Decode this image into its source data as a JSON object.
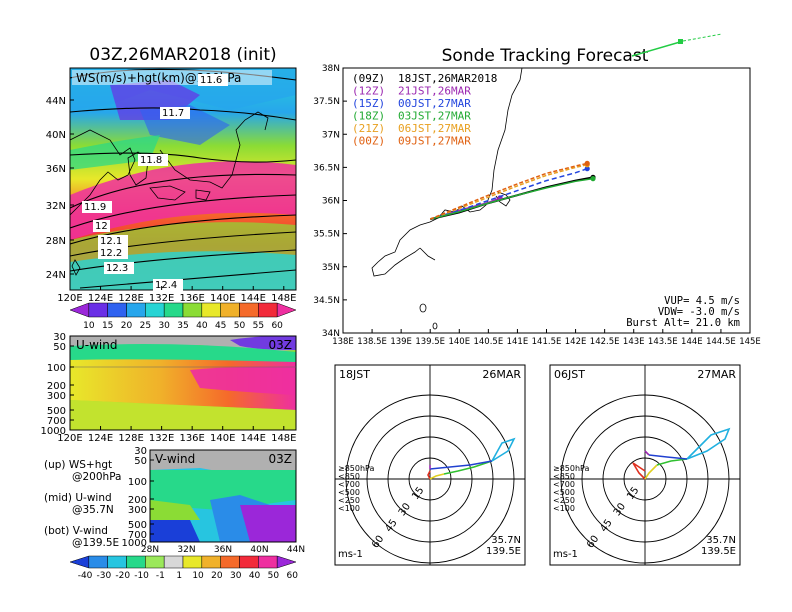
{
  "left": {
    "title": "03Z,26MAR2018 (init)",
    "map_label": "WS(m/s)+hgt(km)@200hPa",
    "lon_ticks": [
      "120E",
      "124E",
      "128E",
      "132E",
      "136E",
      "140E",
      "144E",
      "148E"
    ],
    "lat_ticks": [
      "44N",
      "40N",
      "36N",
      "32N",
      "28N",
      "24N"
    ],
    "hgt_labels": [
      "11.6",
      "11.7",
      "11.8",
      "11.9",
      "12",
      "12.1",
      "12.2",
      "12.3",
      "12.4"
    ],
    "ws_scale": [
      "10",
      "15",
      "20",
      "25",
      "30",
      "35",
      "40",
      "45",
      "50",
      "55",
      "60"
    ],
    "ws_colors": [
      "#9b27d9",
      "#6a2fe6",
      "#2f62f0",
      "#27a6ec",
      "#27d4d4",
      "#27d98a",
      "#8bdc35",
      "#e8e82a",
      "#f0b12a",
      "#f56a2a",
      "#f22a3a",
      "#ee2fa0"
    ],
    "u_panel": {
      "label": "U-wind",
      "time": "03Z",
      "p_ticks": [
        "30",
        "50",
        "100",
        "200",
        "300",
        "500",
        "700",
        "1000"
      ]
    },
    "v_panel": {
      "label": "V-wind",
      "time": "03Z",
      "p_ticks": [
        "30",
        "50",
        "100",
        "200",
        "300",
        "500",
        "700",
        "1000"
      ],
      "lat_ticks": [
        "28N",
        "32N",
        "36N",
        "40N",
        "44N"
      ]
    },
    "legend_lines": [
      {
        "a": "(up) WS+hgt",
        "b": "@200hPa"
      },
      {
        "a": "(mid) U-wind",
        "b": "@35.7N"
      },
      {
        "a": "(bot) V-wind",
        "b": "@139.5E"
      }
    ],
    "wind_scale": [
      "-40",
      "-30",
      "-20",
      "-10",
      "-1",
      "1",
      "10",
      "20",
      "30",
      "40",
      "50",
      "60"
    ],
    "wind_colors": [
      "#1a3fd8",
      "#2a8ce8",
      "#27c5e0",
      "#27d98a",
      "#9be85a",
      "#d8d8d8",
      "#e8e82a",
      "#f0b12a",
      "#f56a2a",
      "#f22a3a",
      "#ee2fa0",
      "#9b27d9"
    ]
  },
  "right": {
    "title": "Sonde Tracking Forecast",
    "entries": [
      {
        "utc": "(09Z)",
        "jst": "18JST,26MAR2018",
        "color": "#000000"
      },
      {
        "utc": "(12Z)",
        "jst": "21JST,26MAR",
        "color": "#9b27b0"
      },
      {
        "utc": "(15Z)",
        "jst": "00JST,27MAR",
        "color": "#2244dd"
      },
      {
        "utc": "(18Z)",
        "jst": "03JST,27MAR",
        "color": "#22aa33"
      },
      {
        "utc": "(21Z)",
        "jst": "06JST,27MAR",
        "color": "#e8a020"
      },
      {
        "utc": "(00Z)",
        "jst": "09JST,27MAR",
        "color": "#e06010"
      }
    ],
    "lat_ticks": [
      "38N",
      "37.5N",
      "37N",
      "36.5N",
      "36N",
      "35.5N",
      "35N",
      "34.5N",
      "34N"
    ],
    "lon_ticks": [
      "138E",
      "138.5E",
      "139E",
      "139.5E",
      "140E",
      "140.5E",
      "141E",
      "141.5E",
      "142E",
      "142.5E",
      "143E",
      "143.5E",
      "144E",
      "144.5E",
      "145E"
    ],
    "vup": "VUP= 4.5 m/s",
    "vdw": "VDW= -3.0 m/s",
    "burst": "Burst Alt= 21.0 km",
    "polar_left": {
      "time": "18JST",
      "date": "26MAR",
      "pos1": "35.7N",
      "pos2": "139.5E",
      "unit": "ms-1"
    },
    "polar_right": {
      "time": "06JST",
      "date": "27MAR",
      "pos1": "35.7N",
      "pos2": "139.5E",
      "unit": "ms-1"
    },
    "ring_labels": [
      "15",
      "30",
      "45",
      "60"
    ],
    "level_legend": [
      {
        "label": "≥850hPa",
        "color": "#e03020"
      },
      {
        "label": "<850",
        "color": "#f0a020"
      },
      {
        "label": "<700",
        "color": "#e0d020"
      },
      {
        "label": "<500",
        "color": "#30c030"
      },
      {
        "label": "<250",
        "color": "#20b0e0"
      },
      {
        "label": "<100",
        "color": "#2040d0"
      }
    ]
  },
  "chart_data": [
    {
      "type": "line",
      "title": "Sonde Tracking Forecast",
      "xlabel": "",
      "ylabel": "",
      "xlim": [
        138,
        145
      ],
      "ylim": [
        34,
        38
      ],
      "series": [
        {
          "name": "(09Z) 18JST,26MAR2018",
          "x": [
            139.5,
            140.0,
            140.5,
            141.0,
            141.5,
            142.0,
            142.3
          ],
          "y": [
            35.72,
            35.82,
            35.96,
            36.08,
            36.2,
            36.3,
            36.35
          ]
        },
        {
          "name": "(12Z) 21JST,26MAR",
          "x": [
            139.5,
            140.0,
            140.5,
            140.7
          ],
          "y": [
            35.72,
            35.85,
            35.97,
            36.04
          ]
        },
        {
          "name": "(15Z) 00JST,27MAR",
          "x": [
            139.5,
            140.0,
            140.5,
            141.0,
            141.5,
            142.0,
            142.2
          ],
          "y": [
            35.72,
            35.85,
            36.0,
            36.15,
            36.3,
            36.42,
            36.48
          ]
        },
        {
          "name": "(18Z) 03JST,27MAR",
          "x": [
            139.5,
            140.0,
            140.5,
            141.0,
            141.5,
            142.0,
            142.3
          ],
          "y": [
            35.72,
            35.83,
            35.96,
            36.08,
            36.19,
            36.29,
            36.33
          ]
        },
        {
          "name": "(21Z) 06JST,27MAR",
          "x": [
            139.5,
            140.0,
            140.5,
            141.0,
            141.5,
            142.0,
            142.2
          ],
          "y": [
            35.72,
            35.88,
            36.05,
            36.22,
            36.38,
            36.5,
            36.54
          ]
        },
        {
          "name": "(00Z) 09JST,27MAR",
          "x": [
            139.5,
            140.0,
            140.5,
            141.0,
            141.5,
            142.0,
            142.2
          ],
          "y": [
            35.72,
            35.9,
            36.08,
            36.25,
            36.41,
            36.52,
            36.56
          ]
        }
      ]
    }
  ]
}
